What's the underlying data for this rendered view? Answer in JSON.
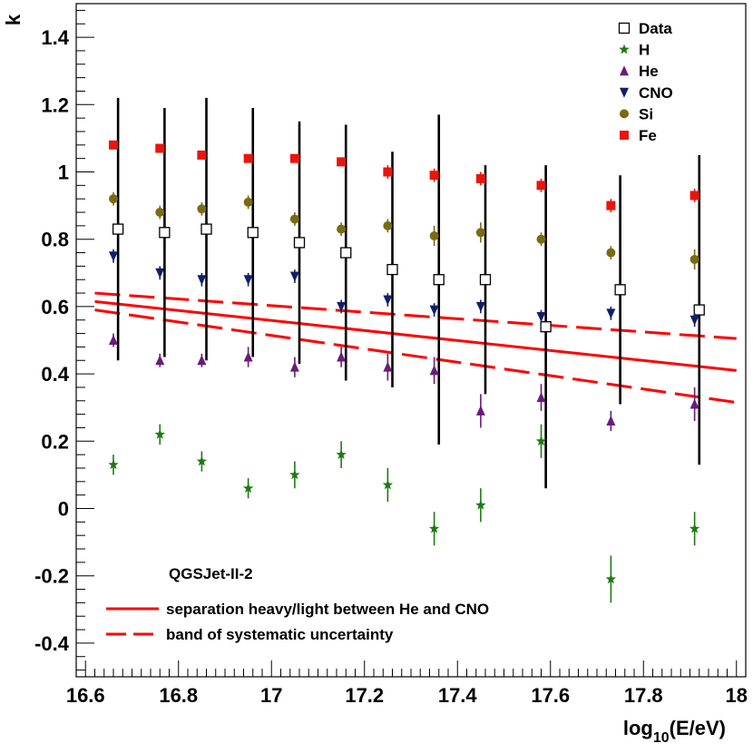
{
  "chart_data": {
    "type": "scatter",
    "title": "",
    "xlabel": "log10(E/eV)",
    "xlabel_base": "log",
    "xlabel_sub": "10",
    "xlabel_rest": "(E/eV)",
    "ylabel": "k",
    "xlim": [
      16.58,
      18.02
    ],
    "ylim": [
      -0.5,
      1.5
    ],
    "x_ticks": [
      16.6,
      16.8,
      17,
      17.2,
      17.4,
      17.6,
      17.8,
      18
    ],
    "x_tick_labels": [
      "16.6",
      "16.8",
      "17",
      "17.2",
      "17.4",
      "17.6",
      "17.8",
      "18"
    ],
    "y_ticks": [
      -0.4,
      -0.2,
      0,
      0.2,
      0.4,
      0.6,
      0.8,
      1,
      1.2,
      1.4
    ],
    "y_tick_labels": [
      "-0.4",
      "-0.2",
      "0",
      "0.2",
      "0.4",
      "0.6",
      "0.8",
      "1",
      "1.2",
      "1.4"
    ],
    "annotation": "QGSJet-II-2",
    "legend_position": "top-right",
    "series": [
      {
        "name": "Data",
        "marker": "open-square",
        "color": "#000000",
        "points": [
          {
            "x": 16.67,
            "y": 0.83,
            "err_lo": 0.39,
            "err_hi": 0.39
          },
          {
            "x": 16.77,
            "y": 0.82,
            "err_lo": 0.37,
            "err_hi": 0.37
          },
          {
            "x": 16.86,
            "y": 0.83,
            "err_lo": 0.39,
            "err_hi": 0.39
          },
          {
            "x": 16.96,
            "y": 0.82,
            "err_lo": 0.37,
            "err_hi": 0.37
          },
          {
            "x": 17.06,
            "y": 0.79,
            "err_lo": 0.36,
            "err_hi": 0.36
          },
          {
            "x": 17.16,
            "y": 0.76,
            "err_lo": 0.38,
            "err_hi": 0.38
          },
          {
            "x": 17.26,
            "y": 0.71,
            "err_lo": 0.35,
            "err_hi": 0.35
          },
          {
            "x": 17.36,
            "y": 0.68,
            "err_lo": 0.49,
            "err_hi": 0.49
          },
          {
            "x": 17.46,
            "y": 0.68,
            "err_lo": 0.34,
            "err_hi": 0.34
          },
          {
            "x": 17.59,
            "y": 0.54,
            "err_lo": 0.48,
            "err_hi": 0.48
          },
          {
            "x": 17.75,
            "y": 0.65,
            "err_lo": 0.34,
            "err_hi": 0.34
          },
          {
            "x": 17.92,
            "y": 0.59,
            "err_lo": 0.46,
            "err_hi": 0.46
          }
        ]
      },
      {
        "name": "H",
        "marker": "star",
        "color": "#1e7a14",
        "points": [
          {
            "x": 16.66,
            "y": 0.13,
            "err_lo": 0.03,
            "err_hi": 0.03
          },
          {
            "x": 16.76,
            "y": 0.22,
            "err_lo": 0.03,
            "err_hi": 0.03
          },
          {
            "x": 16.85,
            "y": 0.14,
            "err_lo": 0.03,
            "err_hi": 0.03
          },
          {
            "x": 16.95,
            "y": 0.06,
            "err_lo": 0.03,
            "err_hi": 0.03
          },
          {
            "x": 17.05,
            "y": 0.1,
            "err_lo": 0.04,
            "err_hi": 0.04
          },
          {
            "x": 17.15,
            "y": 0.16,
            "err_lo": 0.04,
            "err_hi": 0.04
          },
          {
            "x": 17.25,
            "y": 0.07,
            "err_lo": 0.05,
            "err_hi": 0.05
          },
          {
            "x": 17.35,
            "y": -0.06,
            "err_lo": 0.05,
            "err_hi": 0.05
          },
          {
            "x": 17.45,
            "y": 0.01,
            "err_lo": 0.05,
            "err_hi": 0.05
          },
          {
            "x": 17.58,
            "y": 0.2,
            "err_lo": 0.05,
            "err_hi": 0.05
          },
          {
            "x": 17.73,
            "y": -0.21,
            "err_lo": 0.07,
            "err_hi": 0.07
          },
          {
            "x": 17.91,
            "y": -0.06,
            "err_lo": 0.05,
            "err_hi": 0.05
          }
        ]
      },
      {
        "name": "He",
        "marker": "triangle-up",
        "color": "#6a1b7a",
        "points": [
          {
            "x": 16.66,
            "y": 0.5,
            "err_lo": 0.02,
            "err_hi": 0.02
          },
          {
            "x": 16.76,
            "y": 0.44,
            "err_lo": 0.02,
            "err_hi": 0.02
          },
          {
            "x": 16.85,
            "y": 0.44,
            "err_lo": 0.02,
            "err_hi": 0.02
          },
          {
            "x": 16.95,
            "y": 0.45,
            "err_lo": 0.03,
            "err_hi": 0.03
          },
          {
            "x": 17.05,
            "y": 0.42,
            "err_lo": 0.03,
            "err_hi": 0.03
          },
          {
            "x": 17.15,
            "y": 0.45,
            "err_lo": 0.03,
            "err_hi": 0.03
          },
          {
            "x": 17.25,
            "y": 0.42,
            "err_lo": 0.04,
            "err_hi": 0.04
          },
          {
            "x": 17.35,
            "y": 0.41,
            "err_lo": 0.04,
            "err_hi": 0.04
          },
          {
            "x": 17.45,
            "y": 0.29,
            "err_lo": 0.05,
            "err_hi": 0.05
          },
          {
            "x": 17.58,
            "y": 0.33,
            "err_lo": 0.04,
            "err_hi": 0.04
          },
          {
            "x": 17.73,
            "y": 0.26,
            "err_lo": 0.03,
            "err_hi": 0.03
          },
          {
            "x": 17.91,
            "y": 0.31,
            "err_lo": 0.05,
            "err_hi": 0.05
          }
        ]
      },
      {
        "name": "CNO",
        "marker": "triangle-down",
        "color": "#101f6b",
        "points": [
          {
            "x": 16.66,
            "y": 0.75,
            "err_lo": 0.02,
            "err_hi": 0.02
          },
          {
            "x": 16.76,
            "y": 0.7,
            "err_lo": 0.02,
            "err_hi": 0.02
          },
          {
            "x": 16.85,
            "y": 0.68,
            "err_lo": 0.02,
            "err_hi": 0.02
          },
          {
            "x": 16.95,
            "y": 0.68,
            "err_lo": 0.02,
            "err_hi": 0.02
          },
          {
            "x": 17.05,
            "y": 0.69,
            "err_lo": 0.02,
            "err_hi": 0.02
          },
          {
            "x": 17.15,
            "y": 0.6,
            "err_lo": 0.02,
            "err_hi": 0.02
          },
          {
            "x": 17.25,
            "y": 0.62,
            "err_lo": 0.02,
            "err_hi": 0.02
          },
          {
            "x": 17.35,
            "y": 0.59,
            "err_lo": 0.02,
            "err_hi": 0.02
          },
          {
            "x": 17.45,
            "y": 0.6,
            "err_lo": 0.02,
            "err_hi": 0.02
          },
          {
            "x": 17.58,
            "y": 0.57,
            "err_lo": 0.02,
            "err_hi": 0.02
          },
          {
            "x": 17.73,
            "y": 0.58,
            "err_lo": 0.02,
            "err_hi": 0.02
          },
          {
            "x": 17.91,
            "y": 0.56,
            "err_lo": 0.02,
            "err_hi": 0.02
          }
        ]
      },
      {
        "name": "Si",
        "marker": "circle",
        "color": "#7a6a12",
        "points": [
          {
            "x": 16.66,
            "y": 0.92,
            "err_lo": 0.02,
            "err_hi": 0.02
          },
          {
            "x": 16.76,
            "y": 0.88,
            "err_lo": 0.02,
            "err_hi": 0.02
          },
          {
            "x": 16.85,
            "y": 0.89,
            "err_lo": 0.02,
            "err_hi": 0.02
          },
          {
            "x": 16.95,
            "y": 0.91,
            "err_lo": 0.02,
            "err_hi": 0.02
          },
          {
            "x": 17.05,
            "y": 0.86,
            "err_lo": 0.02,
            "err_hi": 0.02
          },
          {
            "x": 17.15,
            "y": 0.83,
            "err_lo": 0.02,
            "err_hi": 0.02
          },
          {
            "x": 17.25,
            "y": 0.84,
            "err_lo": 0.02,
            "err_hi": 0.02
          },
          {
            "x": 17.35,
            "y": 0.81,
            "err_lo": 0.03,
            "err_hi": 0.03
          },
          {
            "x": 17.45,
            "y": 0.82,
            "err_lo": 0.03,
            "err_hi": 0.03
          },
          {
            "x": 17.58,
            "y": 0.8,
            "err_lo": 0.02,
            "err_hi": 0.02
          },
          {
            "x": 17.73,
            "y": 0.76,
            "err_lo": 0.02,
            "err_hi": 0.02
          },
          {
            "x": 17.91,
            "y": 0.74,
            "err_lo": 0.03,
            "err_hi": 0.03
          }
        ]
      },
      {
        "name": "Fe",
        "marker": "square",
        "color": "#e8160c",
        "points": [
          {
            "x": 16.66,
            "y": 1.08,
            "err_lo": 0.01,
            "err_hi": 0.01
          },
          {
            "x": 16.76,
            "y": 1.07,
            "err_lo": 0.01,
            "err_hi": 0.01
          },
          {
            "x": 16.85,
            "y": 1.05,
            "err_lo": 0.01,
            "err_hi": 0.01
          },
          {
            "x": 16.95,
            "y": 1.04,
            "err_lo": 0.01,
            "err_hi": 0.01
          },
          {
            "x": 17.05,
            "y": 1.04,
            "err_lo": 0.01,
            "err_hi": 0.01
          },
          {
            "x": 17.15,
            "y": 1.03,
            "err_lo": 0.01,
            "err_hi": 0.01
          },
          {
            "x": 17.25,
            "y": 1.0,
            "err_lo": 0.02,
            "err_hi": 0.02
          },
          {
            "x": 17.35,
            "y": 0.99,
            "err_lo": 0.02,
            "err_hi": 0.02
          },
          {
            "x": 17.45,
            "y": 0.98,
            "err_lo": 0.02,
            "err_hi": 0.02
          },
          {
            "x": 17.58,
            "y": 0.96,
            "err_lo": 0.02,
            "err_hi": 0.02
          },
          {
            "x": 17.73,
            "y": 0.9,
            "err_lo": 0.02,
            "err_hi": 0.02
          },
          {
            "x": 17.91,
            "y": 0.93,
            "err_lo": 0.02,
            "err_hi": 0.02
          }
        ]
      }
    ],
    "lines": [
      {
        "name": "separation heavy/light between He and CNO",
        "style": "solid",
        "color": "#ff0000",
        "x": [
          16.62,
          18.0
        ],
        "y": [
          0.615,
          0.41
        ]
      },
      {
        "name": "band of systematic uncertainty",
        "style": "dashed",
        "color": "#ff0000",
        "x": [
          16.62,
          18.0
        ],
        "y": [
          0.64,
          0.505
        ]
      },
      {
        "name": "band of systematic uncertainty (lower)",
        "style": "dashed",
        "color": "#ff0000",
        "x": [
          16.62,
          18.0
        ],
        "y": [
          0.59,
          0.315
        ]
      }
    ],
    "bottom_legend": [
      {
        "label": "separation heavy/light between He and CNO",
        "style": "solid",
        "color": "#ff0000"
      },
      {
        "label": "band of systematic uncertainty",
        "style": "dashed",
        "color": "#ff0000"
      }
    ]
  }
}
